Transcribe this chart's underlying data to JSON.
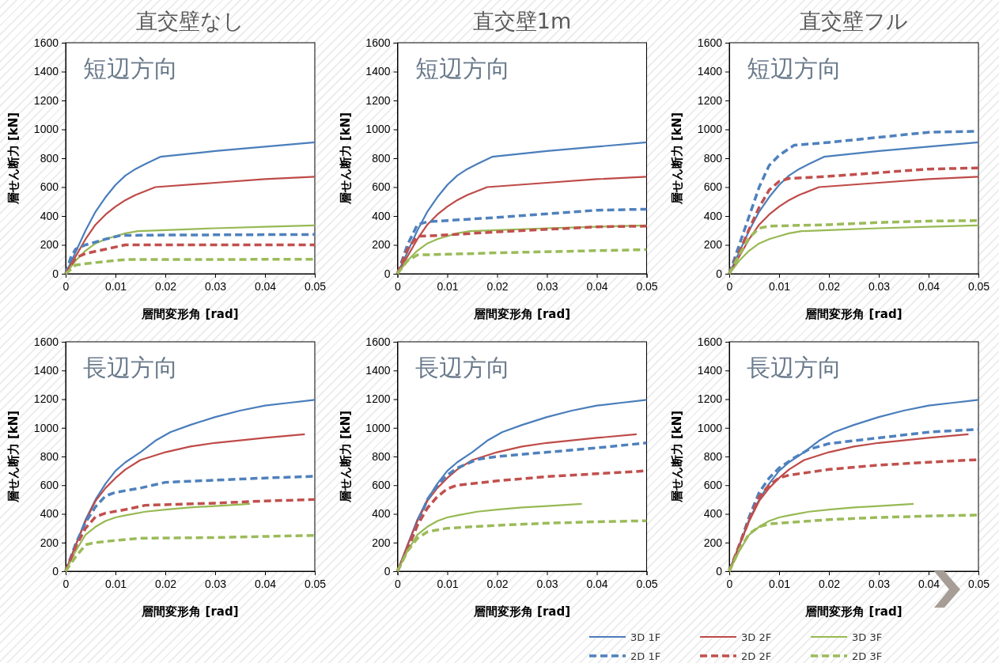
{
  "chart_data": [
    {
      "type": "line",
      "title": "直交壁なし",
      "annotations": [
        "短辺方向"
      ],
      "xlabel": "層間変形角 [rad]",
      "ylabel": "層せん断力 [kN]",
      "xlim": [
        0,
        0.05
      ],
      "ylim": [
        0,
        1600
      ],
      "xticks": [
        0,
        0.01,
        0.02,
        0.03,
        0.04,
        0.05
      ],
      "yticks": [
        0,
        200,
        400,
        600,
        800,
        1000,
        1200,
        1400,
        1600
      ],
      "series": [
        {
          "color": "#4a7ebb",
          "line_style": "solid",
          "x": [
            0,
            0.002,
            0.004,
            0.006,
            0.008,
            0.01,
            0.012,
            0.014,
            0.016,
            0.019,
            0.03,
            0.04,
            0.05
          ],
          "values": [
            0,
            150,
            300,
            430,
            530,
            615,
            680,
            725,
            760,
            810,
            850,
            880,
            910
          ]
        },
        {
          "color": "#be4b48",
          "line_style": "solid",
          "x": [
            0,
            0.002,
            0.004,
            0.006,
            0.008,
            0.01,
            0.012,
            0.014,
            0.018,
            0.03,
            0.04,
            0.05
          ],
          "values": [
            0,
            120,
            240,
            340,
            410,
            465,
            510,
            545,
            600,
            630,
            655,
            672
          ]
        },
        {
          "color": "#98b954",
          "line_style": "solid",
          "x": [
            0,
            0.002,
            0.004,
            0.006,
            0.008,
            0.01,
            0.012,
            0.0145,
            0.02,
            0.03,
            0.04,
            0.05
          ],
          "values": [
            0,
            90,
            160,
            210,
            240,
            260,
            280,
            295,
            302,
            315,
            325,
            335
          ]
        },
        {
          "color": "#4f81bd",
          "line_style": "dashed",
          "x": [
            0,
            0.001,
            0.002,
            0.004,
            0.008,
            0.011,
            0.02,
            0.05
          ],
          "values": [
            0,
            110,
            170,
            200,
            240,
            265,
            268,
            272
          ]
        },
        {
          "color": "#c0504d",
          "line_style": "dashed",
          "x": [
            0,
            0.002,
            0.004,
            0.008,
            0.012,
            0.05
          ],
          "values": [
            0,
            110,
            140,
            170,
            200,
            200
          ]
        },
        {
          "color": "#9bbb59",
          "line_style": "dashed",
          "x": [
            0,
            0.002,
            0.004,
            0.008,
            0.012,
            0.05
          ],
          "values": [
            0,
            60,
            70,
            85,
            98,
            100
          ]
        }
      ]
    },
    {
      "type": "line",
      "title": "直交壁1m",
      "annotations": [
        "短辺方向"
      ],
      "xlabel": "層間変形角 [rad]",
      "ylabel": "層せん断力 [kN]",
      "xlim": [
        0,
        0.05
      ],
      "ylim": [
        0,
        1600
      ],
      "xticks": [
        0,
        0.01,
        0.02,
        0.03,
        0.04,
        0.05
      ],
      "yticks": [
        0,
        200,
        400,
        600,
        800,
        1000,
        1200,
        1400,
        1600
      ],
      "series": [
        {
          "color": "#4a7ebb",
          "line_style": "solid",
          "x": [
            0,
            0.002,
            0.004,
            0.006,
            0.008,
            0.01,
            0.012,
            0.014,
            0.016,
            0.019,
            0.03,
            0.04,
            0.05
          ],
          "values": [
            0,
            150,
            300,
            430,
            530,
            615,
            680,
            725,
            760,
            810,
            850,
            880,
            910
          ]
        },
        {
          "color": "#be4b48",
          "line_style": "solid",
          "x": [
            0,
            0.002,
            0.004,
            0.006,
            0.008,
            0.01,
            0.012,
            0.014,
            0.018,
            0.03,
            0.04,
            0.05
          ],
          "values": [
            0,
            120,
            240,
            340,
            410,
            465,
            510,
            545,
            600,
            630,
            655,
            672
          ]
        },
        {
          "color": "#98b954",
          "line_style": "solid",
          "x": [
            0,
            0.002,
            0.004,
            0.006,
            0.008,
            0.01,
            0.012,
            0.0145,
            0.02,
            0.03,
            0.04,
            0.05
          ],
          "values": [
            0,
            90,
            160,
            210,
            240,
            260,
            280,
            295,
            302,
            315,
            325,
            335
          ]
        },
        {
          "color": "#4f81bd",
          "line_style": "dashed",
          "x": [
            0,
            0.002,
            0.004,
            0.006,
            0.02,
            0.04,
            0.05
          ],
          "values": [
            0,
            200,
            340,
            360,
            390,
            440,
            447
          ]
        },
        {
          "color": "#c0504d",
          "line_style": "dashed",
          "x": [
            0,
            0.002,
            0.004,
            0.008,
            0.02,
            0.04,
            0.05
          ],
          "values": [
            0,
            170,
            260,
            265,
            290,
            325,
            330
          ]
        },
        {
          "color": "#9bbb59",
          "line_style": "dashed",
          "x": [
            0,
            0.002,
            0.004,
            0.01,
            0.02,
            0.04,
            0.05
          ],
          "values": [
            0,
            90,
            130,
            135,
            145,
            160,
            167
          ]
        }
      ]
    },
    {
      "type": "line",
      "title": "直交壁フル",
      "annotations": [
        "短辺方向"
      ],
      "xlabel": "層間変形角 [rad]",
      "ylabel": "層せん断力 [kN]",
      "xlim": [
        0,
        0.05
      ],
      "ylim": [
        0,
        1600
      ],
      "xticks": [
        0,
        0.01,
        0.02,
        0.03,
        0.04,
        0.05
      ],
      "yticks": [
        0,
        200,
        400,
        600,
        800,
        1000,
        1200,
        1400,
        1600
      ],
      "series": [
        {
          "color": "#4a7ebb",
          "line_style": "solid",
          "x": [
            0,
            0.002,
            0.004,
            0.006,
            0.008,
            0.01,
            0.012,
            0.014,
            0.016,
            0.019,
            0.03,
            0.04,
            0.05
          ],
          "values": [
            0,
            150,
            300,
            430,
            530,
            615,
            680,
            725,
            760,
            810,
            850,
            880,
            910
          ]
        },
        {
          "color": "#be4b48",
          "line_style": "solid",
          "x": [
            0,
            0.002,
            0.004,
            0.006,
            0.008,
            0.01,
            0.012,
            0.014,
            0.018,
            0.03,
            0.04,
            0.05
          ],
          "values": [
            0,
            120,
            240,
            340,
            410,
            465,
            510,
            545,
            600,
            630,
            655,
            672
          ]
        },
        {
          "color": "#98b954",
          "line_style": "solid",
          "x": [
            0,
            0.002,
            0.004,
            0.006,
            0.008,
            0.01,
            0.012,
            0.0145,
            0.02,
            0.03,
            0.04,
            0.05
          ],
          "values": [
            0,
            90,
            160,
            210,
            240,
            260,
            280,
            295,
            302,
            315,
            325,
            335
          ]
        },
        {
          "color": "#4f81bd",
          "line_style": "dashed",
          "x": [
            0,
            0.002,
            0.004,
            0.006,
            0.008,
            0.01,
            0.013,
            0.02,
            0.03,
            0.04,
            0.05
          ],
          "values": [
            0,
            200,
            400,
            600,
            750,
            820,
            890,
            910,
            945,
            980,
            987
          ]
        },
        {
          "color": "#c0504d",
          "line_style": "dashed",
          "x": [
            0,
            0.002,
            0.004,
            0.006,
            0.008,
            0.01,
            0.012,
            0.02,
            0.03,
            0.04,
            0.05
          ],
          "values": [
            0,
            150,
            310,
            460,
            580,
            640,
            660,
            675,
            700,
            725,
            733
          ]
        },
        {
          "color": "#9bbb59",
          "line_style": "dashed",
          "x": [
            0,
            0.002,
            0.004,
            0.006,
            0.008,
            0.02,
            0.03,
            0.04,
            0.05
          ],
          "values": [
            0,
            130,
            250,
            315,
            330,
            340,
            355,
            365,
            368
          ]
        }
      ]
    },
    {
      "type": "line",
      "annotations": [
        "長辺方向"
      ],
      "xlabel": "層間変形角 [rad]",
      "ylabel": "層せん断力 [kN]",
      "xlim": [
        0,
        0.05
      ],
      "ylim": [
        0,
        1600
      ],
      "xticks": [
        0,
        0.01,
        0.02,
        0.03,
        0.04,
        0.05
      ],
      "yticks": [
        0,
        200,
        400,
        600,
        800,
        1000,
        1200,
        1400,
        1600
      ],
      "series": [
        {
          "color": "#4a7ebb",
          "line_style": "solid",
          "x": [
            0,
            0.002,
            0.004,
            0.006,
            0.008,
            0.01,
            0.012,
            0.015,
            0.018,
            0.021,
            0.025,
            0.03,
            0.035,
            0.04,
            0.045,
            0.05
          ],
          "values": [
            0,
            180,
            360,
            500,
            610,
            700,
            760,
            830,
            910,
            970,
            1020,
            1075,
            1120,
            1155,
            1175,
            1195
          ]
        },
        {
          "color": "#be4b48",
          "line_style": "solid",
          "x": [
            0,
            0.002,
            0.004,
            0.006,
            0.008,
            0.01,
            0.012,
            0.015,
            0.02,
            0.025,
            0.03,
            0.04,
            0.048
          ],
          "values": [
            0,
            180,
            350,
            490,
            580,
            650,
            710,
            775,
            830,
            870,
            895,
            930,
            955
          ]
        },
        {
          "color": "#98b954",
          "line_style": "solid",
          "x": [
            0,
            0.002,
            0.004,
            0.006,
            0.008,
            0.01,
            0.012,
            0.016,
            0.02,
            0.025,
            0.03,
            0.037
          ],
          "values": [
            0,
            140,
            255,
            310,
            350,
            375,
            390,
            415,
            430,
            445,
            455,
            470
          ]
        },
        {
          "color": "#4f81bd",
          "line_style": "dashed",
          "x": [
            0,
            0.002,
            0.004,
            0.006,
            0.008,
            0.01,
            0.015,
            0.02,
            0.03,
            0.04,
            0.05
          ],
          "values": [
            0,
            190,
            340,
            450,
            525,
            550,
            580,
            620,
            635,
            650,
            662
          ]
        },
        {
          "color": "#c0504d",
          "line_style": "dashed",
          "x": [
            0,
            0.002,
            0.004,
            0.006,
            0.008,
            0.012,
            0.016,
            0.03,
            0.04,
            0.05
          ],
          "values": [
            0,
            170,
            300,
            380,
            405,
            430,
            460,
            475,
            490,
            500
          ]
        },
        {
          "color": "#9bbb59",
          "line_style": "dashed",
          "x": [
            0,
            0.002,
            0.004,
            0.006,
            0.01,
            0.015,
            0.03,
            0.05
          ],
          "values": [
            0,
            100,
            185,
            200,
            215,
            230,
            235,
            250
          ]
        }
      ]
    },
    {
      "type": "line",
      "annotations": [
        "長辺方向"
      ],
      "xlabel": "層間変形角 [rad]",
      "ylabel": "層せん断力 [kN]",
      "xlim": [
        0,
        0.05
      ],
      "ylim": [
        0,
        1600
      ],
      "xticks": [
        0,
        0.01,
        0.02,
        0.03,
        0.04,
        0.05
      ],
      "yticks": [
        0,
        200,
        400,
        600,
        800,
        1000,
        1200,
        1400,
        1600
      ],
      "series": [
        {
          "color": "#4a7ebb",
          "line_style": "solid",
          "x": [
            0,
            0.002,
            0.004,
            0.006,
            0.008,
            0.01,
            0.012,
            0.015,
            0.018,
            0.021,
            0.025,
            0.03,
            0.035,
            0.04,
            0.045,
            0.05
          ],
          "values": [
            0,
            180,
            360,
            500,
            610,
            700,
            760,
            830,
            910,
            970,
            1020,
            1075,
            1120,
            1155,
            1175,
            1195
          ]
        },
        {
          "color": "#be4b48",
          "line_style": "solid",
          "x": [
            0,
            0.002,
            0.004,
            0.006,
            0.008,
            0.01,
            0.012,
            0.015,
            0.02,
            0.025,
            0.03,
            0.04,
            0.048
          ],
          "values": [
            0,
            180,
            350,
            490,
            580,
            650,
            710,
            775,
            830,
            870,
            895,
            930,
            955
          ]
        },
        {
          "color": "#98b954",
          "line_style": "solid",
          "x": [
            0,
            0.002,
            0.004,
            0.006,
            0.008,
            0.01,
            0.012,
            0.016,
            0.02,
            0.025,
            0.03,
            0.037
          ],
          "values": [
            0,
            140,
            255,
            310,
            350,
            375,
            390,
            415,
            430,
            445,
            455,
            470
          ]
        },
        {
          "color": "#4f81bd",
          "line_style": "dashed",
          "x": [
            0,
            0.002,
            0.004,
            0.006,
            0.008,
            0.01,
            0.012,
            0.016,
            0.02,
            0.03,
            0.04,
            0.05
          ],
          "values": [
            0,
            150,
            330,
            500,
            600,
            670,
            720,
            780,
            800,
            830,
            860,
            895
          ]
        },
        {
          "color": "#c0504d",
          "line_style": "dashed",
          "x": [
            0,
            0.002,
            0.004,
            0.006,
            0.008,
            0.01,
            0.012,
            0.02,
            0.03,
            0.04,
            0.05
          ],
          "values": [
            0,
            150,
            320,
            440,
            520,
            575,
            600,
            630,
            660,
            680,
            700
          ]
        },
        {
          "color": "#9bbb59",
          "line_style": "dashed",
          "x": [
            0,
            0.002,
            0.004,
            0.006,
            0.01,
            0.02,
            0.03,
            0.04,
            0.05
          ],
          "values": [
            0,
            140,
            230,
            275,
            300,
            320,
            335,
            345,
            352
          ]
        }
      ]
    },
    {
      "type": "line",
      "annotations": [
        "長辺方向"
      ],
      "xlabel": "層間変形角 [rad]",
      "ylabel": "層せん断力 [kN]",
      "xlim": [
        0,
        0.05
      ],
      "ylim": [
        0,
        1600
      ],
      "xticks": [
        0,
        0.01,
        0.02,
        0.03,
        0.04,
        0.05
      ],
      "yticks": [
        0,
        200,
        400,
        600,
        800,
        1000,
        1200,
        1400,
        1600
      ],
      "legend": "bottom",
      "series": [
        {
          "name": "3D 1F",
          "color": "#4a7ebb",
          "line_style": "solid",
          "x": [
            0,
            0.002,
            0.004,
            0.006,
            0.008,
            0.01,
            0.012,
            0.015,
            0.018,
            0.021,
            0.025,
            0.03,
            0.035,
            0.04,
            0.045,
            0.05
          ],
          "values": [
            0,
            180,
            360,
            500,
            610,
            700,
            760,
            830,
            910,
            970,
            1020,
            1075,
            1120,
            1155,
            1175,
            1195
          ]
        },
        {
          "name": "3D 2F",
          "color": "#be4b48",
          "line_style": "solid",
          "x": [
            0,
            0.002,
            0.004,
            0.006,
            0.008,
            0.01,
            0.012,
            0.015,
            0.02,
            0.025,
            0.03,
            0.04,
            0.048
          ],
          "values": [
            0,
            180,
            350,
            490,
            580,
            650,
            710,
            775,
            830,
            870,
            895,
            930,
            955
          ]
        },
        {
          "name": "3D 3F",
          "color": "#98b954",
          "line_style": "solid",
          "x": [
            0,
            0.002,
            0.004,
            0.006,
            0.008,
            0.01,
            0.012,
            0.016,
            0.02,
            0.025,
            0.03,
            0.037
          ],
          "values": [
            0,
            140,
            255,
            310,
            350,
            375,
            390,
            415,
            430,
            445,
            455,
            470
          ]
        },
        {
          "name": "2D 1F",
          "color": "#4f81bd",
          "line_style": "dashed",
          "x": [
            0,
            0.002,
            0.004,
            0.006,
            0.008,
            0.01,
            0.013,
            0.016,
            0.02,
            0.03,
            0.04,
            0.05
          ],
          "values": [
            0,
            180,
            380,
            550,
            650,
            720,
            790,
            850,
            890,
            930,
            970,
            990
          ]
        },
        {
          "name": "2D 2F",
          "color": "#c0504d",
          "line_style": "dashed",
          "x": [
            0,
            0.002,
            0.004,
            0.006,
            0.008,
            0.01,
            0.012,
            0.02,
            0.03,
            0.04,
            0.05
          ],
          "values": [
            0,
            180,
            360,
            520,
            600,
            650,
            670,
            710,
            740,
            760,
            778
          ]
        },
        {
          "name": "2D 3F",
          "color": "#9bbb59",
          "line_style": "dashed",
          "x": [
            0,
            0.002,
            0.004,
            0.006,
            0.008,
            0.02,
            0.03,
            0.04,
            0.05
          ],
          "values": [
            0,
            150,
            260,
            310,
            330,
            360,
            375,
            385,
            392
          ]
        }
      ]
    }
  ]
}
